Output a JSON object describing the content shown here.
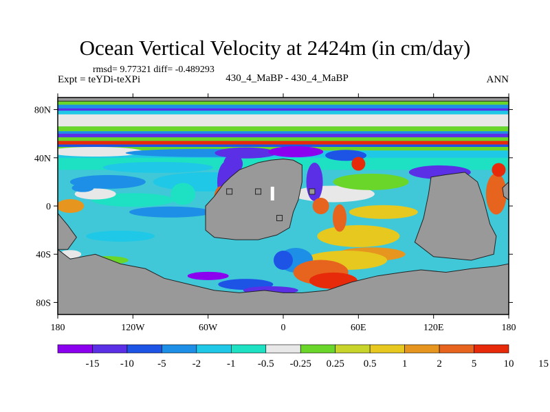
{
  "title": "Ocean Vertical Velocity at 2424m (in cm/day)",
  "stats_text": "rmsd= 9.77321 diff= -0.489293",
  "experiment_label": "Expt = teYDi-teXPi",
  "comparison_label": "430_4_MaBP - 430_4_MaBP",
  "period_label": "ANN",
  "colors": {
    "land": "#999999",
    "coast": "#222222",
    "palette": [
      "#8b00ee",
      "#5a2fe6",
      "#1e54e6",
      "#1e8fe6",
      "#1ec8e6",
      "#1ee0c2",
      "#e8e8e8",
      "#6ad62a",
      "#c8d42a",
      "#e6c81e",
      "#e6961e",
      "#e6641e",
      "#e62a0a"
    ]
  },
  "chart_data": {
    "type": "heatmap",
    "title": "Ocean Vertical Velocity at 2424m (in cm/day)",
    "x_range": [
      -180,
      180
    ],
    "y_range": [
      -90,
      90
    ],
    "x_ticks": [
      {
        "value": -180,
        "label": "180"
      },
      {
        "value": -120,
        "label": "120W"
      },
      {
        "value": -60,
        "label": "60W"
      },
      {
        "value": 0,
        "label": "0"
      },
      {
        "value": 60,
        "label": "60E"
      },
      {
        "value": 120,
        "label": "120E"
      },
      {
        "value": 180,
        "label": "180"
      }
    ],
    "y_ticks": [
      {
        "value": 80,
        "label": "80N"
      },
      {
        "value": 40,
        "label": "40N"
      },
      {
        "value": 0,
        "label": "0"
      },
      {
        "value": -40,
        "label": "40S"
      },
      {
        "value": -80,
        "label": "80S"
      }
    ],
    "colorbar_levels": [
      "-15",
      "-10",
      "-5",
      "-2",
      "-1",
      "-0.5",
      "-0.25",
      "0.25",
      "0.5",
      "1",
      "2",
      "5",
      "10",
      "15"
    ]
  }
}
